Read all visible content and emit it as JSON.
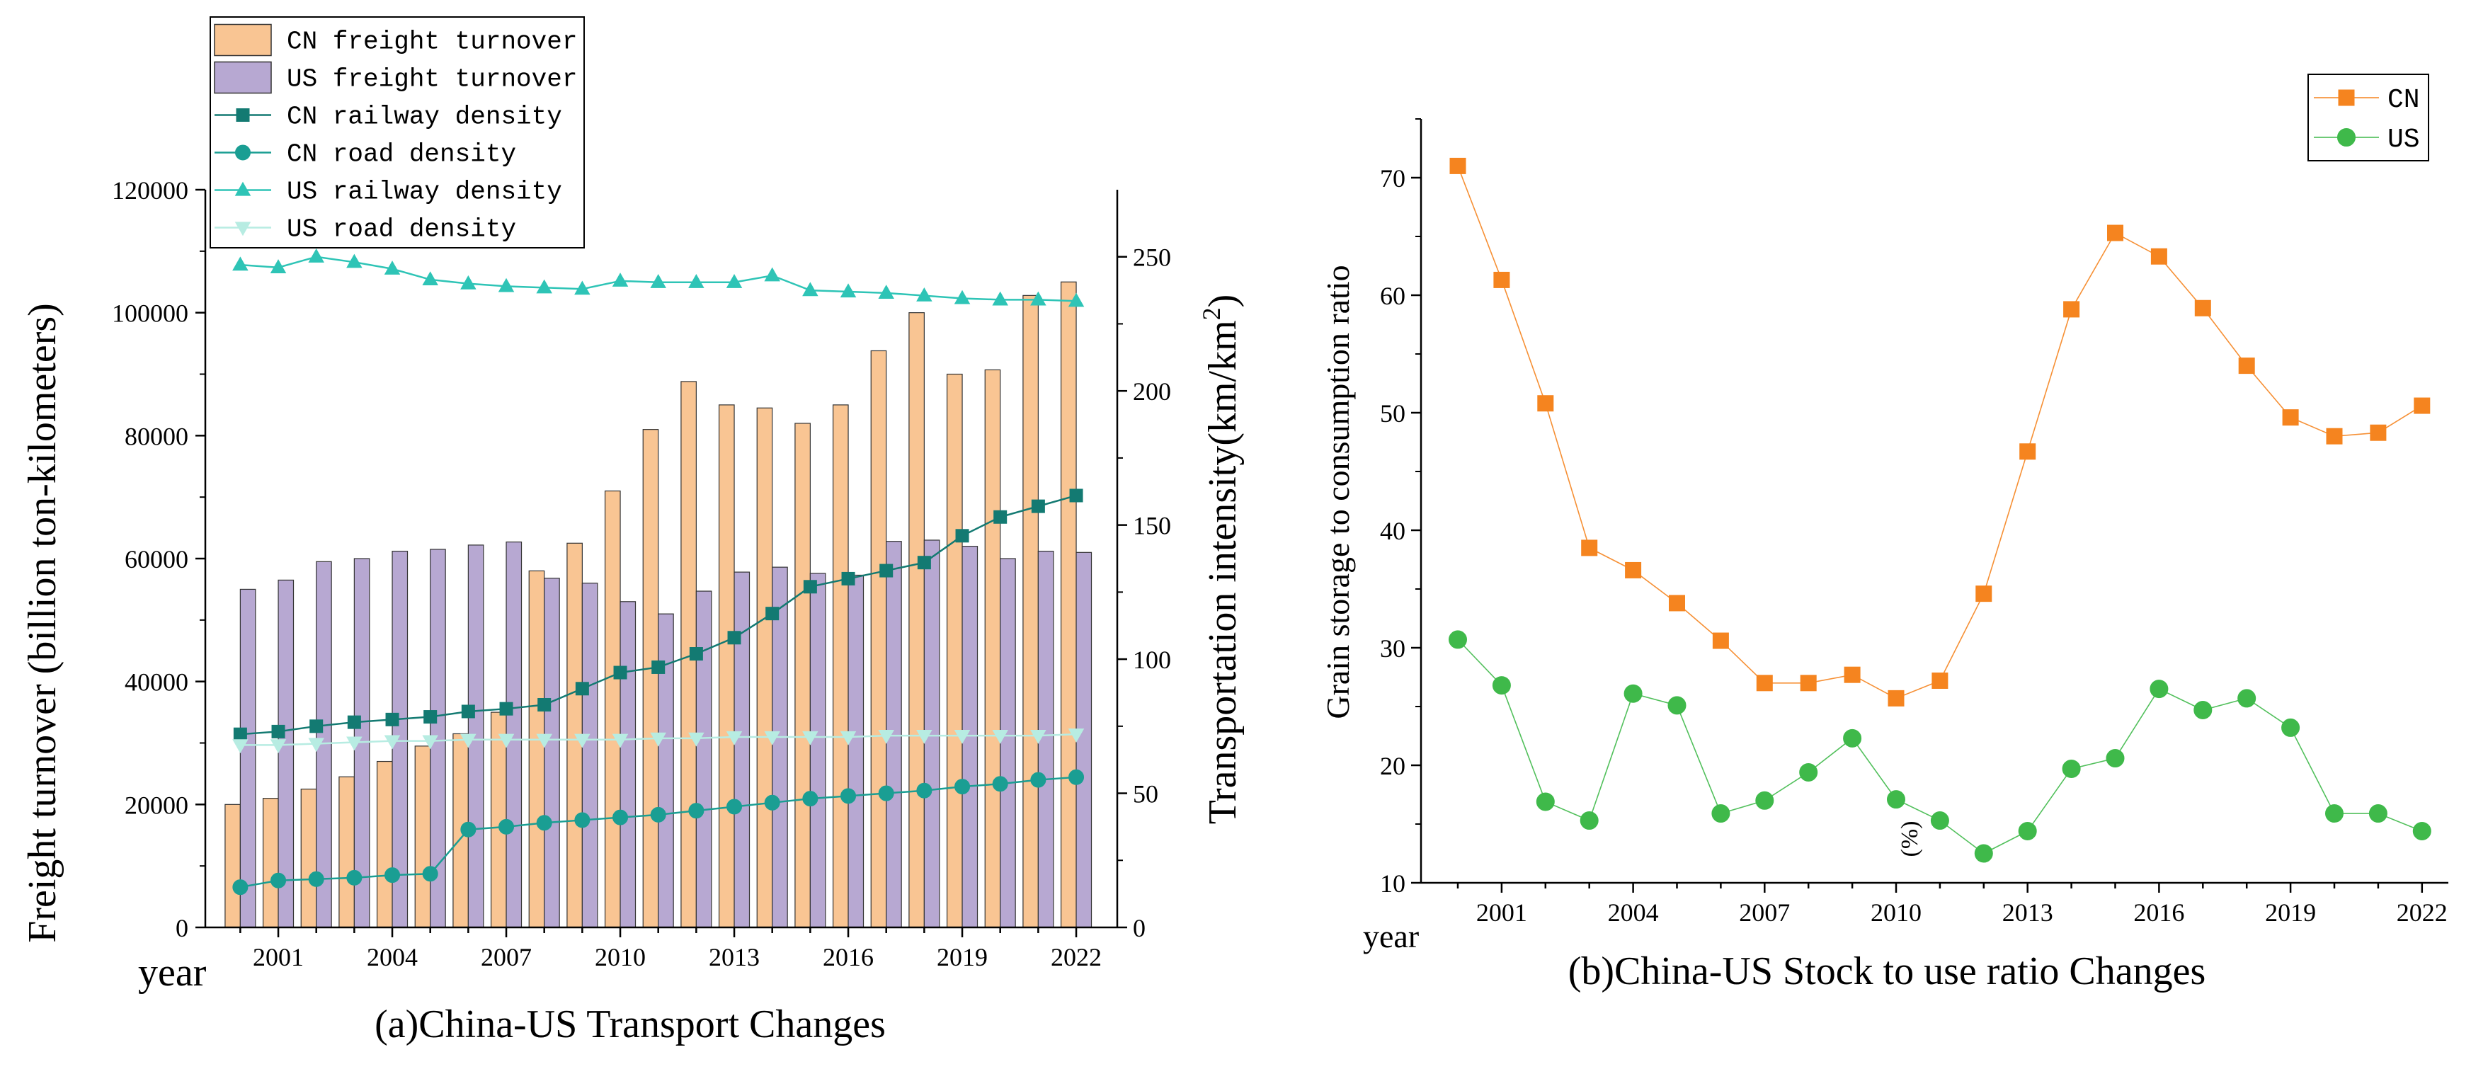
{
  "chart_data": [
    {
      "type": "bar+line",
      "caption": "(a)China-US Transport Changes",
      "xlabel": "year",
      "ylabel_left": "Freight turnover  (billion ton-kilometers)",
      "ylabel_right_prefix": "Transportation intensity(km/km",
      "ylabel_right_sup": "2",
      "ylabel_right_suffix": ")",
      "x": [
        2000,
        2001,
        2002,
        2003,
        2004,
        2005,
        2006,
        2007,
        2008,
        2009,
        2010,
        2011,
        2012,
        2013,
        2014,
        2015,
        2016,
        2017,
        2018,
        2019,
        2020,
        2021,
        2022
      ],
      "x_ticks": [
        "2001",
        "2004",
        "2007",
        "2010",
        "2013",
        "2016",
        "2019",
        "2022"
      ],
      "ylim_left": [
        0,
        120000
      ],
      "y_ticks_left": [
        "0",
        "20000",
        "40000",
        "60000",
        "80000",
        "100000",
        "120000"
      ],
      "ylim_right": [
        0,
        275
      ],
      "y_ticks_right": [
        "0",
        "50",
        "100",
        "150",
        "200",
        "250"
      ],
      "bar_series": [
        {
          "name": "CN freight turnover",
          "axis": "left",
          "color": "#f9c593",
          "values": [
            20000,
            21000,
            22500,
            24500,
            27000,
            29500,
            31500,
            35000,
            58000,
            62500,
            71000,
            81000,
            88800,
            85000,
            84500,
            82000,
            85000,
            93800,
            100000,
            90000,
            90700,
            102800,
            105000
          ]
        },
        {
          "name": "US freight turnover",
          "axis": "left",
          "color": "#b7a8d2",
          "values": [
            55000,
            56500,
            59500,
            60000,
            61200,
            61500,
            62200,
            62700,
            56800,
            56000,
            53000,
            51000,
            54700,
            57800,
            58600,
            57600,
            57300,
            62800,
            63000,
            62000,
            60000,
            61200,
            61000
          ]
        }
      ],
      "line_series": [
        {
          "name": "CN railway density",
          "axis": "right",
          "color": "#137a72",
          "marker": "square",
          "values": [
            72,
            73,
            75,
            76.5,
            77.5,
            78.5,
            80.5,
            81.5,
            83,
            89,
            95,
            97,
            102,
            108,
            117,
            127,
            130,
            133,
            136,
            146,
            153,
            157,
            161
          ]
        },
        {
          "name": "CN road density",
          "axis": "right",
          "color": "#1a9e93",
          "marker": "circle",
          "values": [
            15,
            17.5,
            18,
            18.5,
            19.5,
            20,
            36.5,
            37.5,
            39,
            40,
            41,
            42,
            43.5,
            45,
            46.5,
            48,
            49,
            50,
            51,
            52.5,
            53.5,
            55,
            56
          ]
        },
        {
          "name": "US railway density",
          "axis": "right",
          "color": "#2ec4b6",
          "marker": "triangle",
          "values": [
            247,
            246,
            250,
            248,
            245.5,
            241.5,
            240,
            239,
            238.5,
            238,
            241,
            240.5,
            240.5,
            240.5,
            243,
            237.5,
            237,
            236.5,
            235.5,
            234.5,
            234,
            234,
            233.5
          ]
        },
        {
          "name": "US road density",
          "axis": "right",
          "color": "#b7ece2",
          "marker": "triangle-down",
          "values": [
            68,
            68,
            68.5,
            69,
            69.5,
            69.5,
            70,
            70,
            70,
            70,
            70,
            70.5,
            70.5,
            71,
            71,
            71,
            71,
            71.5,
            71.5,
            71.5,
            71.5,
            71.5,
            72
          ]
        }
      ],
      "legend_position": "top-left"
    },
    {
      "type": "line",
      "caption": "(b)China-US Stock to use ratio Changes",
      "xlabel": "year",
      "ylabel": "Grain storage to consumption ratio",
      "annotation": "(%)",
      "x": [
        2000,
        2001,
        2002,
        2003,
        2004,
        2005,
        2006,
        2007,
        2008,
        2009,
        2010,
        2011,
        2012,
        2013,
        2014,
        2015,
        2016,
        2017,
        2018,
        2019,
        2020,
        2021,
        2022
      ],
      "x_ticks": [
        "2001",
        "2004",
        "2007",
        "2010",
        "2013",
        "2016",
        "2019",
        "2022"
      ],
      "ylim": [
        10,
        75
      ],
      "y_ticks": [
        "10",
        "20",
        "30",
        "40",
        "50",
        "60",
        "70"
      ],
      "series": [
        {
          "name": "CN",
          "color": "#f5841f",
          "marker": "square",
          "values": [
            71,
            61.3,
            50.8,
            38.5,
            36.6,
            33.8,
            30.6,
            27,
            27,
            27.7,
            25.7,
            27.2,
            34.6,
            46.7,
            58.8,
            65.3,
            63.3,
            58.9,
            54,
            49.6,
            48,
            48.3,
            50.6
          ]
        },
        {
          "name": "US",
          "color": "#3fb94a",
          "marker": "circle",
          "values": [
            30.7,
            26.8,
            16.9,
            15.3,
            26.1,
            25.1,
            15.9,
            17,
            19.4,
            22.3,
            17.1,
            15.3,
            12.5,
            14.4,
            19.7,
            20.6,
            26.5,
            24.7,
            25.7,
            23.2,
            15.9,
            15.9,
            14.4
          ]
        }
      ],
      "legend_position": "top-right"
    }
  ]
}
